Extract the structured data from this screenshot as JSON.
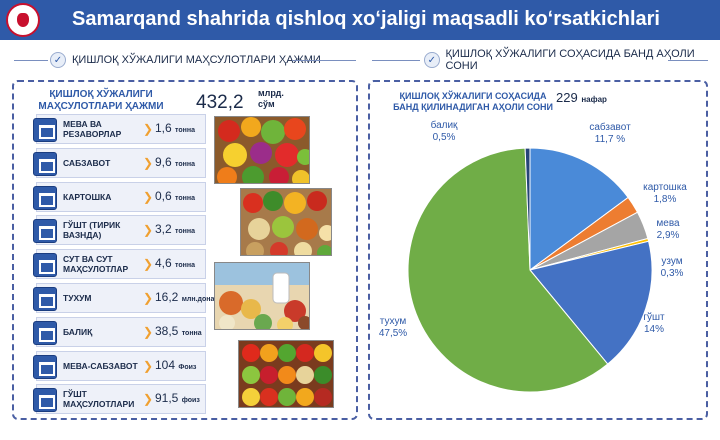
{
  "header": {
    "title": "Samarqand shahrida qishloq xoʻjaligi maqsadli koʻrsatkichlari"
  },
  "left": {
    "section_label": "ҚИШЛОҚ ХЎЖАЛИГИ МАҲСУЛОТЛАРИ ҲАЖМИ",
    "heading": "ҚИШЛОҚ ХЎЖАЛИГИ МАҲСУЛОТЛАРИ ҲАЖМИ",
    "total_value": "432,2",
    "total_unit": "млрд. сўм",
    "rows": [
      {
        "label": "МЕВА ВА РЕЗАВОРЛАР",
        "value": "1,6",
        "unit": "тонна"
      },
      {
        "label": "САБЗАВОТ",
        "value": "9,6",
        "unit": "тонна"
      },
      {
        "label": "КАРТОШКА",
        "value": "0,6",
        "unit": "тонна"
      },
      {
        "label": "ГЎШТ (ТИРИК ВАЗНДА)",
        "value": "3,2",
        "unit": "тонна"
      },
      {
        "label": "СУТ ВА СУТ МАҲСУЛОТЛАР",
        "value": "4,6",
        "unit": "тонна"
      },
      {
        "label": "ТУХУМ",
        "value": "16,2",
        "unit": "млн.дона"
      },
      {
        "label": "БАЛИҚ",
        "value": "38,5",
        "unit": "тонна"
      },
      {
        "label": "МЕВА-САБЗАВОТ",
        "value": "104",
        "unit": "Фоиз"
      },
      {
        "label": "ГЎШТ МАҲСУЛОТЛАРИ",
        "value": "91,5",
        "unit": "фоиз"
      }
    ]
  },
  "right": {
    "section_label": "ҚИШЛОҚ ХЎЖАЛИГИ СОҲАСИДА БАНД АҲОЛИ СОНИ",
    "heading": "ҚИШЛОҚ ХЎЖАЛИГИ СОҲАСИДА БАНД ҚИЛИНАДИГАН АҲОЛИ СОНИ",
    "total_value": "229",
    "total_unit": "нафар"
  },
  "chart_data": {
    "type": "pie",
    "slices": [
      {
        "name": "сабзавот",
        "label": "11,7 %",
        "value": 11.7,
        "color": "#4a8ad8"
      },
      {
        "name": "картошка",
        "label": "1,8%",
        "value": 1.8,
        "color": "#ed7d31"
      },
      {
        "name": "мева",
        "label": "2,9%",
        "value": 2.9,
        "color": "#a5a5a5"
      },
      {
        "name": "узум",
        "label": "0,3%",
        "value": 0.3,
        "color": "#ffc000"
      },
      {
        "name": "гўшт",
        "label": "14%",
        "value": 14,
        "color": "#4472c4"
      },
      {
        "name": "тухум",
        "label": "47,5%",
        "value": 47.5,
        "color": "#70ad47"
      },
      {
        "name": "балиқ",
        "label": "0,5%",
        "value": 0.5,
        "color": "#264478"
      }
    ]
  }
}
